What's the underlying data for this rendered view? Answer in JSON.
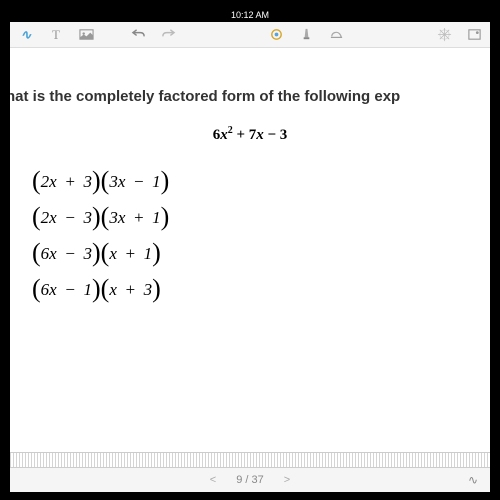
{
  "status_bar": {
    "time": "10:12 AM"
  },
  "toolbar": {
    "draw_label": "~",
    "text_label": "T"
  },
  "content": {
    "question": "hat is the completely factored form of the following exp",
    "expression_html": "6<i>x</i><sup>2</sup> + 7<i>x</i> − 3",
    "options": [
      {
        "a": "2x + 3",
        "b": "3x − 1"
      },
      {
        "a": "2x − 3",
        "b": "3x + 1"
      },
      {
        "a": "6x − 3",
        "b": "x + 1"
      },
      {
        "a": "6x − 1",
        "b": "x + 3"
      }
    ]
  },
  "footer": {
    "prev": "<",
    "page": "9 / 37",
    "next": ">"
  },
  "colors": {
    "toolbar_bg": "#f5f5f5",
    "icon_gray": "#888888",
    "accent_blue": "#4aa3d8",
    "text_dark": "#333333"
  }
}
